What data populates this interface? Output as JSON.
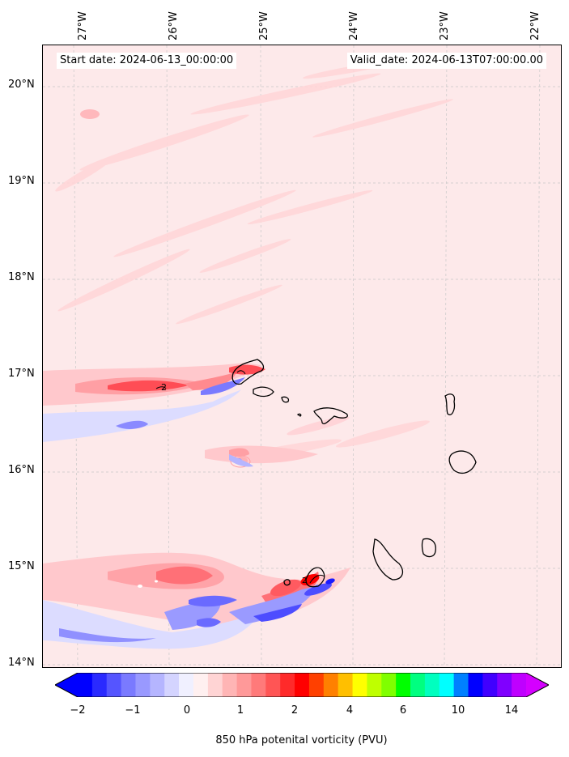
{
  "map": {
    "start_date": "Start date: 2024-06-13_00:00:00",
    "valid_date": "Valid_date: 2024-06-13T07:00:00.00",
    "lon_labels": [
      "27°W",
      "26°W",
      "25°W",
      "24°W",
      "23°W",
      "22°W"
    ],
    "lat_labels": [
      "20°N",
      "19°N",
      "18°N",
      "17°N",
      "16°N",
      "15°N",
      "14°N"
    ],
    "contour_label": "2",
    "contour_label_2": "2"
  },
  "colorbar": {
    "label": "850 hPa potenital vorticity (PVU)",
    "ticks": [
      "−2",
      "−1",
      "0",
      "1",
      "2",
      "4",
      "6",
      "10",
      "14"
    ],
    "colors": [
      "#0000ff",
      "#2a2aff",
      "#5555ff",
      "#7a7aff",
      "#9999ff",
      "#b5b5ff",
      "#d4d4ff",
      "#f0f0ff",
      "#fff0f0",
      "#ffd4d4",
      "#ffb5b5",
      "#ff9999",
      "#ff7a7a",
      "#ff5555",
      "#ff2a2a",
      "#ff0000",
      "#ff4000",
      "#ff8000",
      "#ffbf00",
      "#ffff00",
      "#bfff00",
      "#80ff00",
      "#00ff00",
      "#00ff80",
      "#00ffbf",
      "#00ffff",
      "#0080ff",
      "#0000ff",
      "#4000ff",
      "#8000ff",
      "#bf00ff"
    ]
  }
}
